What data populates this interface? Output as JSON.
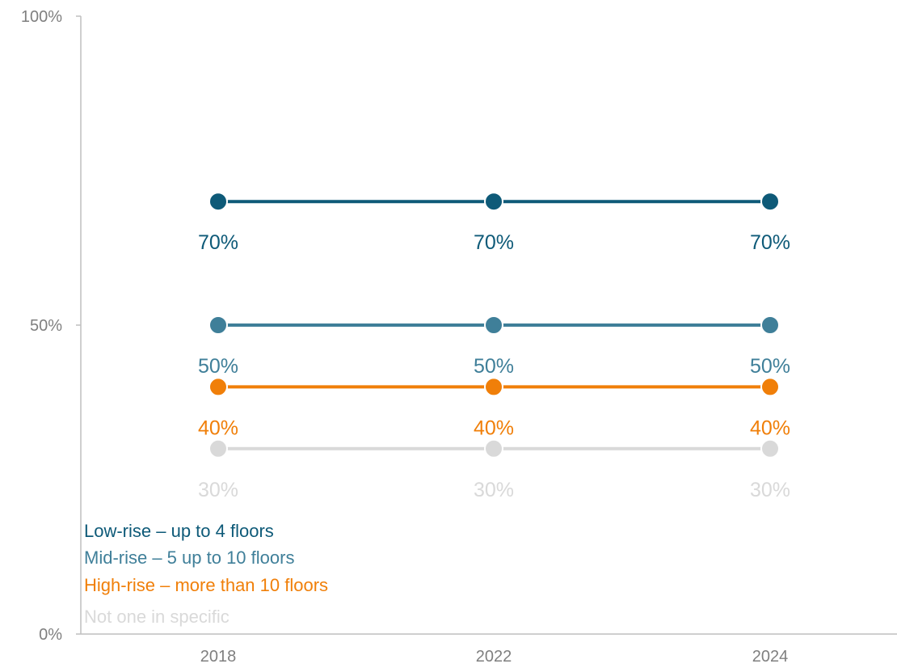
{
  "chart_data": {
    "type": "line",
    "title": "",
    "xlabel": "",
    "ylabel": "",
    "categories": [
      "2018",
      "2022",
      "2024"
    ],
    "ylim": [
      0,
      100
    ],
    "yticks": [
      {
        "value": 0,
        "label": "0%"
      },
      {
        "value": 50,
        "label": "50%"
      },
      {
        "value": 100,
        "label": "100%"
      }
    ],
    "grid": false,
    "legend_position": "bottom-left",
    "series": [
      {
        "name": "Low-rise – up to 4 floors",
        "color": "#0e5a78",
        "values": [
          70,
          70,
          70
        ],
        "labels": [
          "70%",
          "70%",
          "70%"
        ]
      },
      {
        "name": "Mid-rise – 5 up to 10 floors",
        "color": "#3f7f99",
        "values": [
          50,
          50,
          50
        ],
        "labels": [
          "50%",
          "50%",
          "50%"
        ]
      },
      {
        "name": "High-rise – more than 10 floors",
        "color": "#f07f09",
        "values": [
          40,
          40,
          40
        ],
        "labels": [
          "40%",
          "40%",
          "40%"
        ]
      },
      {
        "name": "Not one in specific",
        "color": "#d9d9d9",
        "values": [
          30,
          30,
          30
        ],
        "labels": [
          "30%",
          "30%",
          "30%"
        ]
      }
    ]
  }
}
